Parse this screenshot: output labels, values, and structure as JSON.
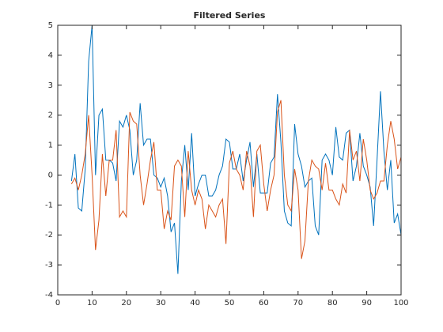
{
  "chart_data": {
    "type": "line",
    "title": "Filtered Series",
    "x": [
      4,
      5,
      6,
      7,
      8,
      9,
      10,
      11,
      12,
      13,
      14,
      15,
      16,
      17,
      18,
      19,
      20,
      21,
      22,
      23,
      24,
      25,
      26,
      27,
      28,
      29,
      30,
      31,
      32,
      33,
      34,
      35,
      36,
      37,
      38,
      39,
      40,
      41,
      42,
      43,
      44,
      45,
      46,
      47,
      48,
      49,
      50,
      51,
      52,
      53,
      54,
      55,
      56,
      57,
      58,
      59,
      60,
      61,
      62,
      63,
      64,
      65,
      66,
      67,
      68,
      69,
      70,
      71,
      72,
      73,
      74,
      75,
      76,
      77,
      78,
      79,
      80,
      81,
      82,
      83,
      84,
      85,
      86,
      87,
      88,
      89,
      90,
      91,
      92,
      93,
      94,
      95,
      96,
      97,
      98,
      99,
      100
    ],
    "series": [
      {
        "color": "#0072bd",
        "values": [
          -0.2,
          0.7,
          -1.1,
          -1.2,
          0.2,
          3.8,
          5.0,
          0.0,
          2.0,
          2.2,
          0.5,
          0.5,
          0.4,
          -0.2,
          1.8,
          1.6,
          2.0,
          1.5,
          0.0,
          0.5,
          2.4,
          1.0,
          1.2,
          1.2,
          0.0,
          -0.1,
          -0.4,
          -0.1,
          -0.7,
          -1.9,
          -1.6,
          -3.3,
          -0.2,
          1.0,
          -0.5,
          1.4,
          -0.7,
          -0.3,
          0.0,
          0.0,
          -0.7,
          -0.7,
          -0.5,
          0.0,
          0.3,
          1.2,
          1.1,
          0.2,
          0.2,
          0.7,
          -0.2,
          0.5,
          1.1,
          -0.4,
          0.7,
          -0.6,
          -0.6,
          -0.6,
          0.4,
          0.6,
          2.7,
          1.1,
          -1.2,
          -1.6,
          -1.7,
          1.7,
          0.7,
          0.3,
          -0.4,
          -0.2,
          -0.1,
          -1.7,
          -2.0,
          0.5,
          0.7,
          0.5,
          0.0,
          1.6,
          0.6,
          0.5,
          1.4,
          1.5,
          -0.2,
          0.3,
          1.4,
          0.3,
          0.0,
          -0.4,
          -1.7,
          0.5,
          2.8,
          0.8,
          -0.5,
          0.5,
          -1.6,
          -1.3,
          -2.0
        ]
      },
      {
        "color": "#d95319",
        "values": [
          -0.3,
          -0.1,
          -0.5,
          0.0,
          0.7,
          2.0,
          0.0,
          -2.5,
          -1.5,
          0.7,
          -0.7,
          0.5,
          0.5,
          1.5,
          -1.4,
          -1.2,
          -1.4,
          2.1,
          1.8,
          1.7,
          0.0,
          -1.0,
          -0.3,
          0.5,
          1.1,
          -0.5,
          -0.5,
          -1.8,
          -1.2,
          -1.5,
          0.3,
          0.5,
          0.3,
          -1.4,
          0.8,
          -0.5,
          -1.0,
          -0.5,
          -0.8,
          -1.8,
          -1.0,
          -1.2,
          -1.4,
          -1.0,
          -0.8,
          -2.3,
          0.4,
          0.8,
          0.2,
          0.0,
          -0.5,
          0.8,
          0.3,
          -1.4,
          0.8,
          1.0,
          -0.3,
          -1.2,
          -0.5,
          0.0,
          2.1,
          2.5,
          0.0,
          -1.0,
          -1.2,
          0.2,
          -0.5,
          -2.8,
          -2.2,
          -0.2,
          0.5,
          0.3,
          0.2,
          -0.5,
          0.4,
          -0.5,
          -0.5,
          -0.8,
          -1.0,
          -0.3,
          -0.6,
          1.5,
          0.5,
          0.8,
          -0.2,
          1.2,
          0.5,
          -0.5,
          -0.8,
          -0.6,
          -0.2,
          -0.2,
          1.0,
          1.8,
          1.2,
          0.2,
          0.6
        ]
      }
    ],
    "xlim": [
      0,
      100
    ],
    "xticks": [
      0,
      10,
      20,
      30,
      40,
      50,
      60,
      70,
      80,
      90,
      100
    ],
    "ylim": [
      -4,
      5
    ],
    "yticks": [
      -4,
      -3,
      -2,
      -1,
      0,
      1,
      2,
      3,
      4,
      5
    ]
  }
}
